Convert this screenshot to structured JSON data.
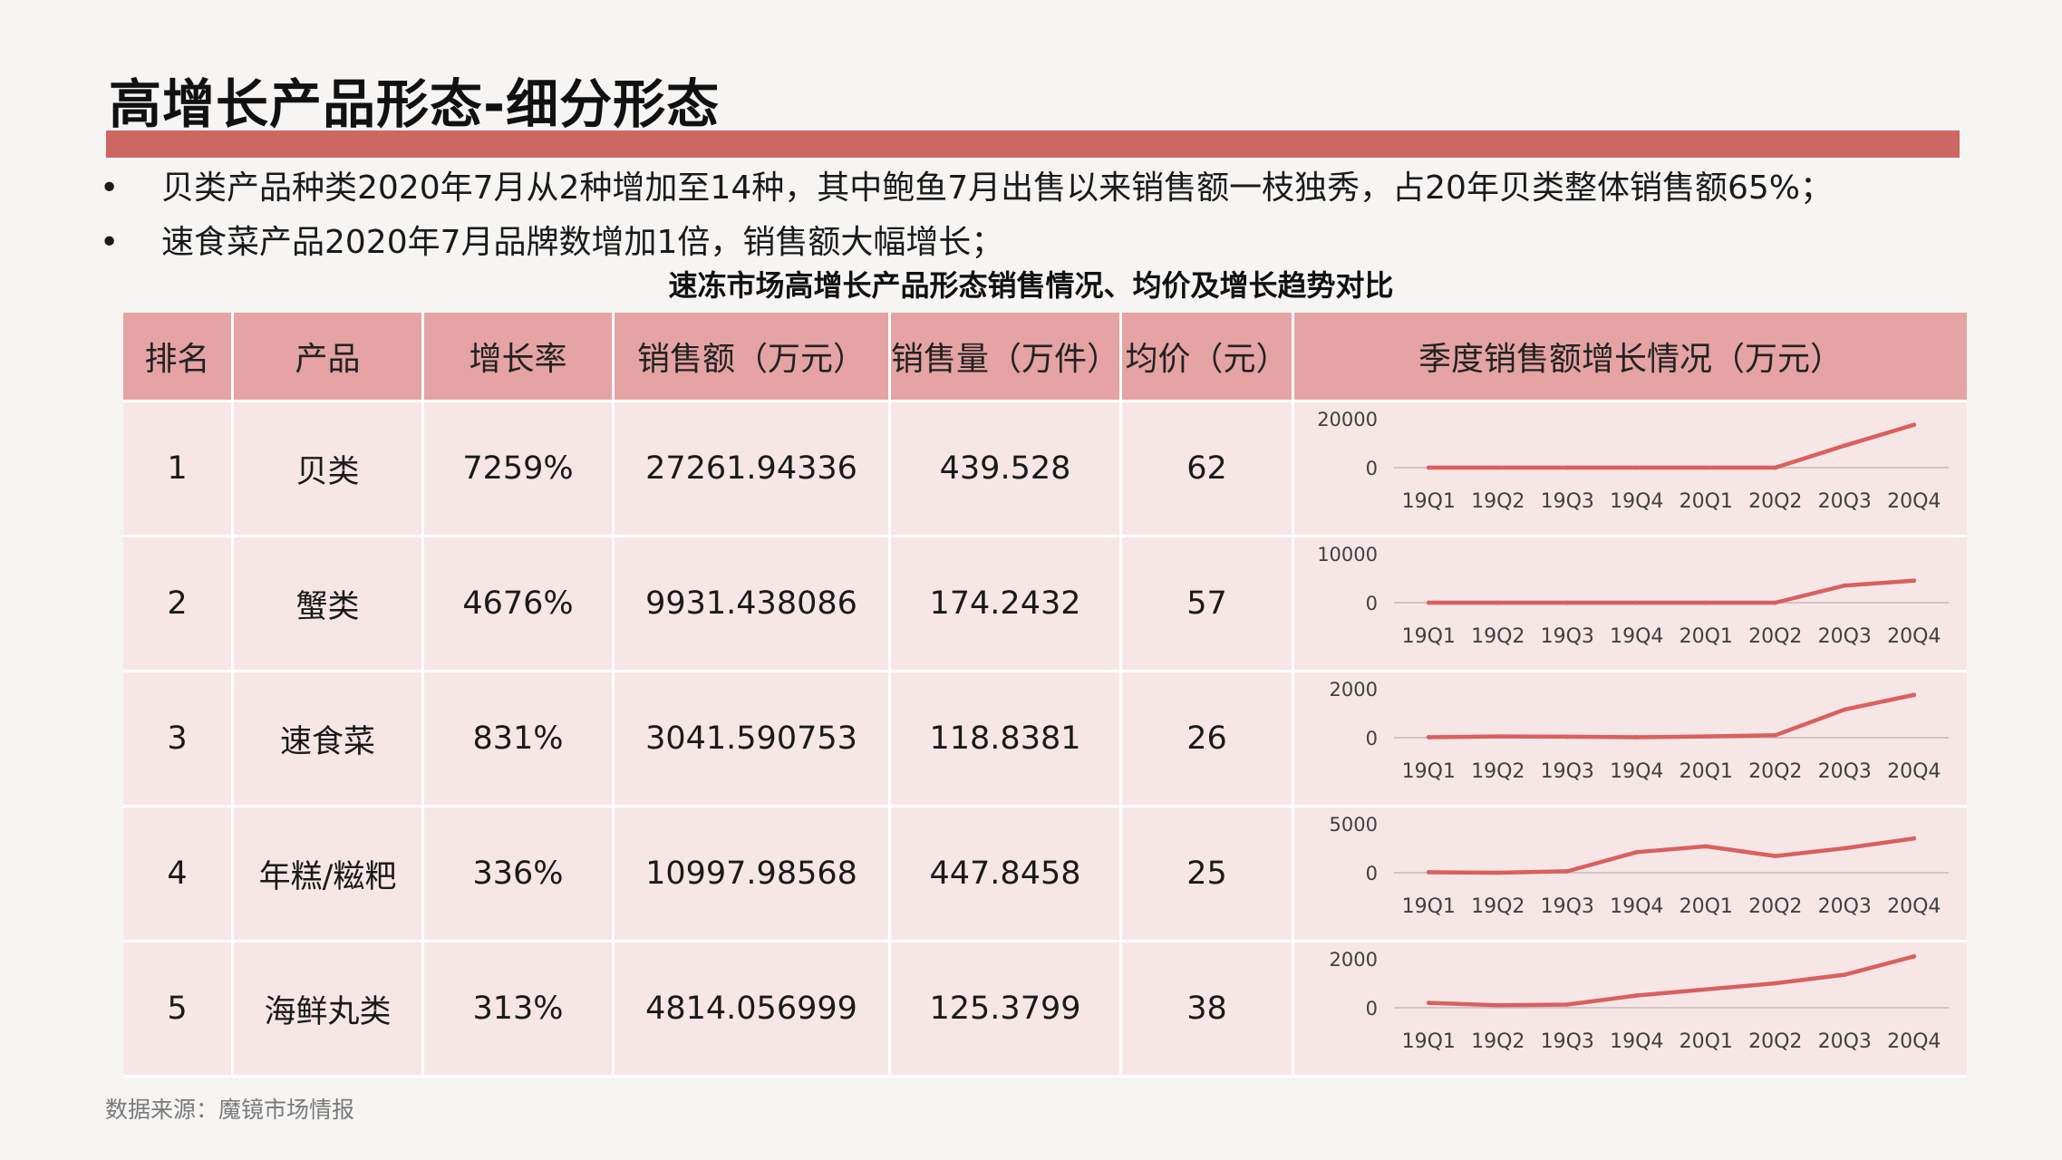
{
  "page": {
    "title": "高增长产品形态-细分形态",
    "bullets": [
      "贝类产品种类2020年7月从2种增加至14种，其中鲍鱼7月出售以来销售额一枝独秀，占20年贝类整体销售额65%；",
      "速食菜产品2020年7月品牌数增加1倍，销售额大幅增长；"
    ],
    "bullet_marker": "•",
    "table_title": "速冻市场高增长产品形态销售情况、均价及增长趋势对比",
    "source": "数据来源：魔镜市场情报",
    "accent_color": "#cd6763",
    "header_color": "#e5a3a3",
    "row_color": "#f7e6e6"
  },
  "table": {
    "headers": [
      "排名",
      "产品",
      "增长率",
      "销售额（万元）",
      "销售量（万件）",
      "均价（元）",
      "季度销售额增长情况（万元）"
    ],
    "rows": [
      [
        "1",
        "贝类",
        "7259%",
        "27261.94336",
        "439.528",
        "62"
      ],
      [
        "2",
        "蟹类",
        "4676%",
        "9931.438086",
        "174.2432",
        "57"
      ],
      [
        "3",
        "速食菜",
        "831%",
        "3041.590753",
        "118.8381",
        "26"
      ],
      [
        "4",
        "年糕/糍粑",
        "336%",
        "10997.98568",
        "447.8458",
        "25"
      ],
      [
        "5",
        "海鲜丸类",
        "313%",
        "4814.056999",
        "125.3799",
        "38"
      ]
    ]
  },
  "chart_data": [
    {
      "type": "line",
      "product": "贝类",
      "categories": [
        "19Q1",
        "19Q2",
        "19Q3",
        "19Q4",
        "20Q1",
        "20Q2",
        "20Q3",
        "20Q4"
      ],
      "values": [
        0,
        0,
        0,
        0,
        0,
        0,
        9000,
        17500
      ],
      "yticks": [
        "20000",
        "0"
      ],
      "ylim": [
        0,
        20000
      ],
      "color": "#d9605e",
      "grid": false
    },
    {
      "type": "line",
      "product": "蟹类",
      "categories": [
        "19Q1",
        "19Q2",
        "19Q3",
        "19Q4",
        "20Q1",
        "20Q2",
        "20Q3",
        "20Q4"
      ],
      "values": [
        0,
        0,
        0,
        0,
        0,
        0,
        3500,
        4500
      ],
      "yticks": [
        "10000",
        "0"
      ],
      "ylim": [
        0,
        10000
      ],
      "color": "#d9605e",
      "grid": false
    },
    {
      "type": "line",
      "product": "速食菜",
      "categories": [
        "19Q1",
        "19Q2",
        "19Q3",
        "19Q4",
        "20Q1",
        "20Q2",
        "20Q3",
        "20Q4"
      ],
      "values": [
        20,
        50,
        40,
        20,
        50,
        100,
        1150,
        1750
      ],
      "yticks": [
        "2000",
        "0"
      ],
      "ylim": [
        0,
        2000
      ],
      "color": "#d9605e",
      "grid": false
    },
    {
      "type": "line",
      "product": "年糕/糍粑",
      "categories": [
        "19Q1",
        "19Q2",
        "19Q3",
        "19Q4",
        "20Q1",
        "20Q2",
        "20Q3",
        "20Q4"
      ],
      "values": [
        50,
        0,
        150,
        2100,
        2700,
        1700,
        2500,
        3500
      ],
      "yticks": [
        "5000",
        "0"
      ],
      "ylim": [
        0,
        5000
      ],
      "color": "#d9605e",
      "grid": false
    },
    {
      "type": "line",
      "product": "海鲜丸类",
      "categories": [
        "19Q1",
        "19Q2",
        "19Q3",
        "19Q4",
        "20Q1",
        "20Q2",
        "20Q3",
        "20Q4"
      ],
      "values": [
        200,
        100,
        130,
        500,
        750,
        1000,
        1350,
        2100
      ],
      "yticks": [
        "2000",
        "0"
      ],
      "ylim": [
        0,
        2000
      ],
      "color": "#d9605e",
      "grid": false
    }
  ]
}
